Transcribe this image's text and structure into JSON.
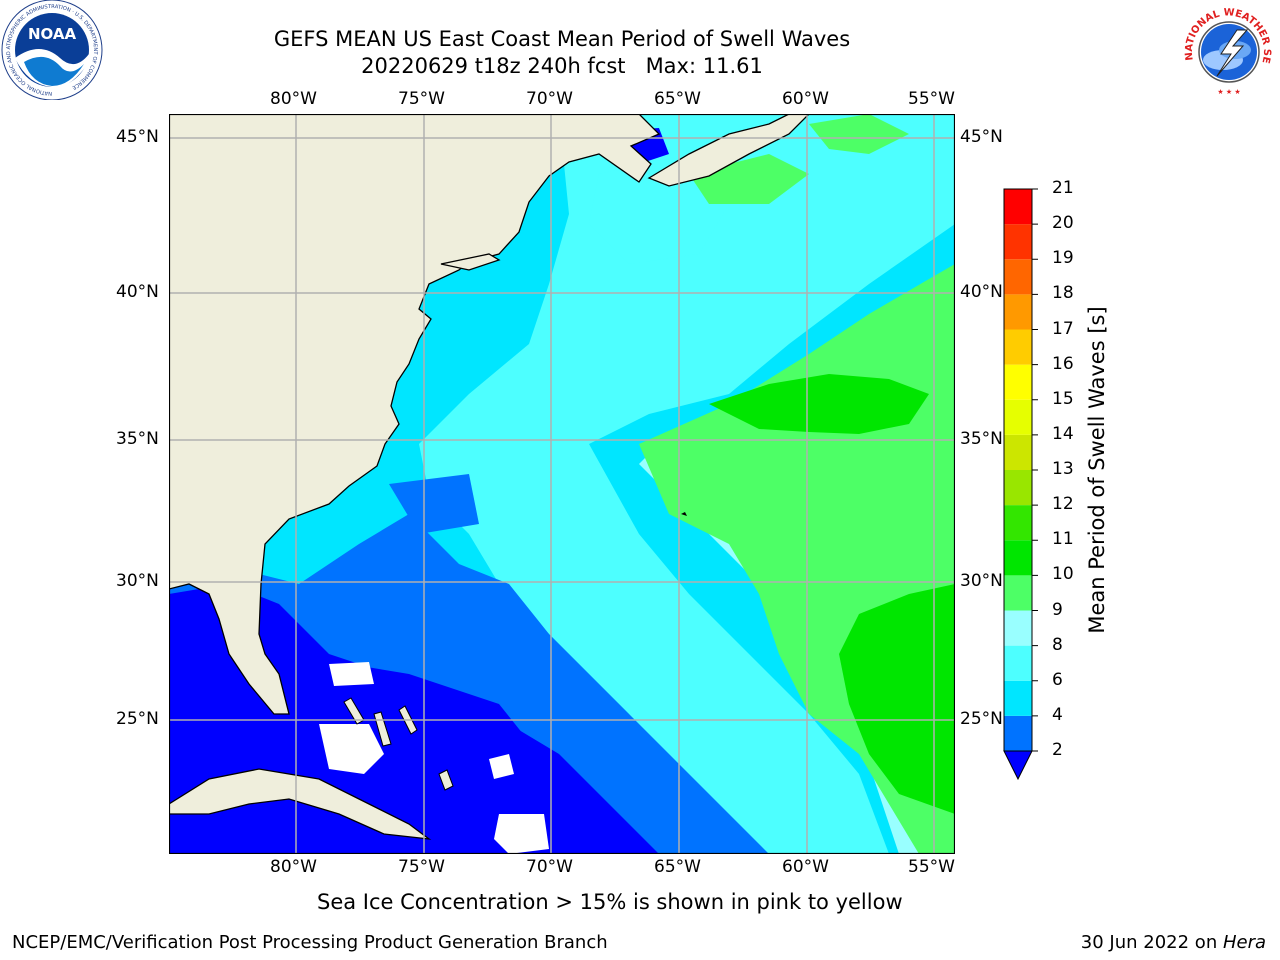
{
  "title": {
    "line1": "GEFS MEAN US East Coast Mean Period of Swell Waves",
    "line2": "20220629 t18z 240h fcst   Max: 11.61"
  },
  "map": {
    "lon_labels": [
      "80°W",
      "75°W",
      "70°W",
      "65°W",
      "60°W",
      "55°W"
    ],
    "lat_labels": [
      "45°N",
      "40°N",
      "35°N",
      "30°N",
      "25°N"
    ],
    "colors": {
      "land": "#efeedc",
      "no_data": "#ffffff",
      "grid": "#b0b0b0"
    }
  },
  "colorbar": {
    "label": "Mean Period of Swell Waves [s]",
    "ticks": [
      "2",
      "4",
      "6",
      "8",
      "9",
      "10",
      "11",
      "12",
      "13",
      "14",
      "15",
      "16",
      "17",
      "18",
      "19",
      "20",
      "21"
    ],
    "colors": [
      "#0000ff",
      "#0073ff",
      "#00e6ff",
      "#4dffff",
      "#99ffff",
      "#4dff66",
      "#00e600",
      "#33e600",
      "#99e600",
      "#cce600",
      "#e6ff00",
      "#ffff00",
      "#ffcc00",
      "#ff9900",
      "#ff6600",
      "#ff3300",
      "#ff0000"
    ]
  },
  "caption": "Sea Ice Concentration > 15% is shown in pink to yellow",
  "footer": {
    "left": "NCEP/EMC/Verification Post Processing Product Generation Branch",
    "date": "30 Jun 2022 on ",
    "host": "Hera"
  },
  "logos": {
    "noaa_text": "NOAA",
    "noaa_ring": "NATIONAL OCEANIC AND ATMOSPHERIC ADMINISTRATION · U.S. DEPARTMENT OF COMMERCE",
    "nws_ring": "NATIONAL WEATHER SERVICE"
  }
}
